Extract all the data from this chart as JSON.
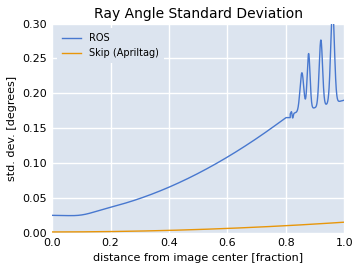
{
  "title": "Ray Angle Standard Deviation",
  "xlabel": "distance from image center [fraction]",
  "ylabel": "std. dev. [degrees]",
  "xlim": [
    0.0,
    1.0
  ],
  "ylim": [
    0.0,
    0.3
  ],
  "yticks": [
    0.0,
    0.05,
    0.1,
    0.15,
    0.2,
    0.25,
    0.3
  ],
  "xticks": [
    0.0,
    0.2,
    0.4,
    0.6,
    0.8,
    1.0
  ],
  "ros_color": "#4878CF",
  "skip_color": "#E8960A",
  "legend_labels": [
    "ROS",
    "Skip (Apriltag)"
  ],
  "background_color": "#DCE4EF",
  "grid_color": "#ffffff",
  "figure_color": "#ffffff",
  "title_fontsize": 10,
  "label_fontsize": 8,
  "tick_fontsize": 8
}
